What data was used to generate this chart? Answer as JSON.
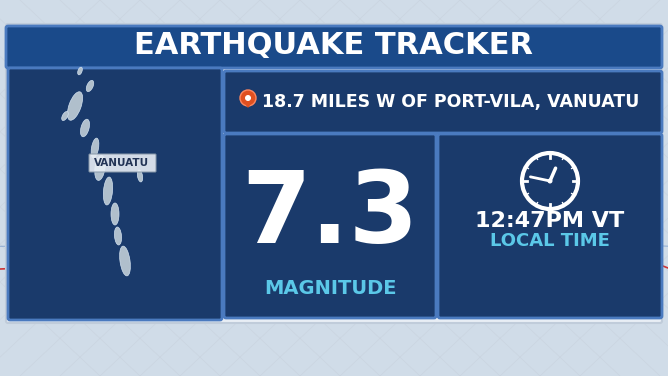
{
  "title": "EARTHQUAKE TRACKER",
  "location_text": "18.7 MILES W OF PORT-VILA, VANUATU",
  "magnitude": "7.3",
  "magnitude_label": "MAGNITUDE",
  "time": "12:47PM VT",
  "time_label": "LOCAL TIME",
  "map_label": "VANUATU",
  "title_bg": "#1a4a8a",
  "title_text_color": "#ffffff",
  "card_bg": "#1a3a6b",
  "card_border": "#4a7abf",
  "location_bg": "#1a3a6b",
  "map_bg": "#1a3a6b",
  "magnitude_color": "#ffffff",
  "magnitude_label_color": "#5bc8e8",
  "time_color": "#ffffff",
  "time_label_color": "#5bc8e8",
  "outer_bg": "#d0dce8",
  "pin_color": "#e05020",
  "seismograph_color": "#cc2222",
  "grid_color": "#b0b8c8",
  "islands": [
    [
      75,
      270,
      12,
      30,
      -20
    ],
    [
      85,
      248,
      8,
      18,
      -15
    ],
    [
      95,
      228,
      7,
      20,
      -10
    ],
    [
      100,
      208,
      10,
      25,
      -8
    ],
    [
      108,
      185,
      9,
      28,
      -5
    ],
    [
      115,
      162,
      8,
      22,
      0
    ],
    [
      118,
      140,
      7,
      18,
      5
    ],
    [
      125,
      115,
      10,
      30,
      8
    ],
    [
      90,
      290,
      6,
      12,
      -25
    ],
    [
      140,
      200,
      5,
      12,
      10
    ],
    [
      65,
      260,
      5,
      10,
      -30
    ],
    [
      80,
      305,
      4,
      8,
      -20
    ]
  ]
}
